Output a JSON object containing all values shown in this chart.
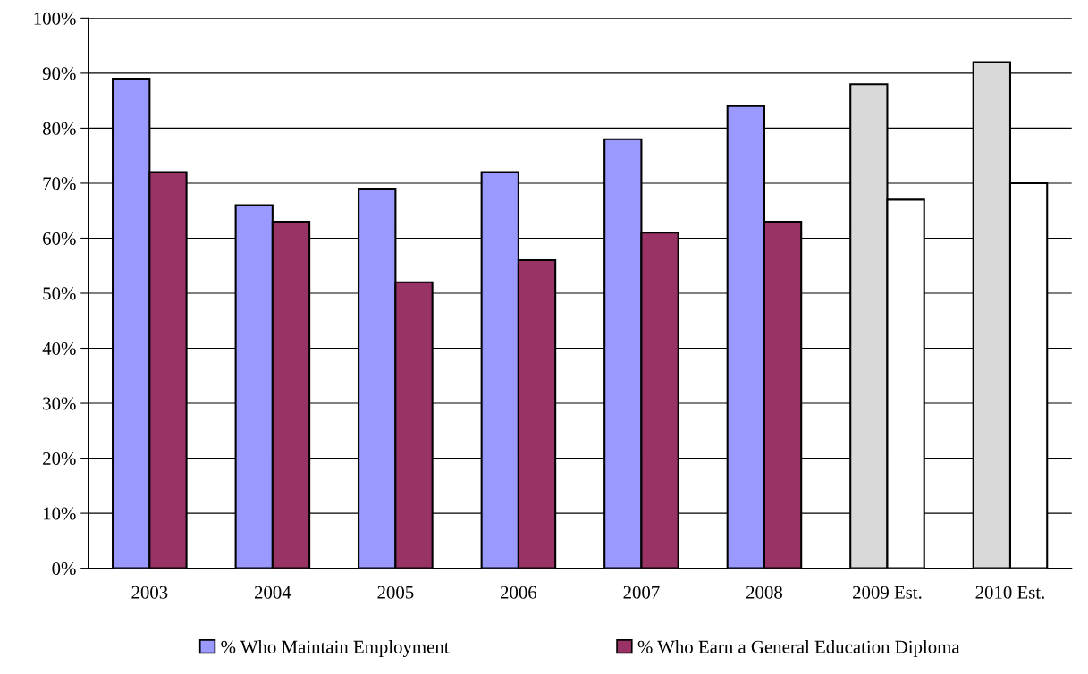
{
  "chart_data": {
    "type": "bar",
    "categories": [
      "2003",
      "2004",
      "2005",
      "2006",
      "2007",
      "2008",
      "2009 Est.",
      "2010 Est."
    ],
    "series": [
      {
        "name": "% Who Maintain Employment",
        "color": "#9999ff",
        "colors": [
          "#9999ff",
          "#9999ff",
          "#9999ff",
          "#9999ff",
          "#9999ff",
          "#9999ff",
          "#d9d9d9",
          "#d9d9d9"
        ],
        "values": [
          89,
          66,
          69,
          72,
          78,
          84,
          88,
          92
        ]
      },
      {
        "name": "% Who Earn a General Education Diploma",
        "color": "#993366",
        "colors": [
          "#993366",
          "#993366",
          "#993366",
          "#993366",
          "#993366",
          "#993366",
          "#ffffff",
          "#ffffff"
        ],
        "values": [
          72,
          63,
          52,
          56,
          61,
          63,
          67,
          70
        ]
      }
    ],
    "ylim": [
      0,
      100
    ],
    "yticks": [
      {
        "value": 0,
        "label": "0%"
      },
      {
        "value": 10,
        "label": "10%"
      },
      {
        "value": 20,
        "label": "20%"
      },
      {
        "value": 30,
        "label": "30%"
      },
      {
        "value": 40,
        "label": "40%"
      },
      {
        "value": 50,
        "label": "50%"
      },
      {
        "value": 60,
        "label": "60%"
      },
      {
        "value": 70,
        "label": "70%"
      },
      {
        "value": 80,
        "label": "80%"
      },
      {
        "value": 90,
        "label": "90%"
      },
      {
        "value": 100,
        "label": "100%"
      }
    ],
    "grid": "y",
    "legend": "bottom"
  }
}
